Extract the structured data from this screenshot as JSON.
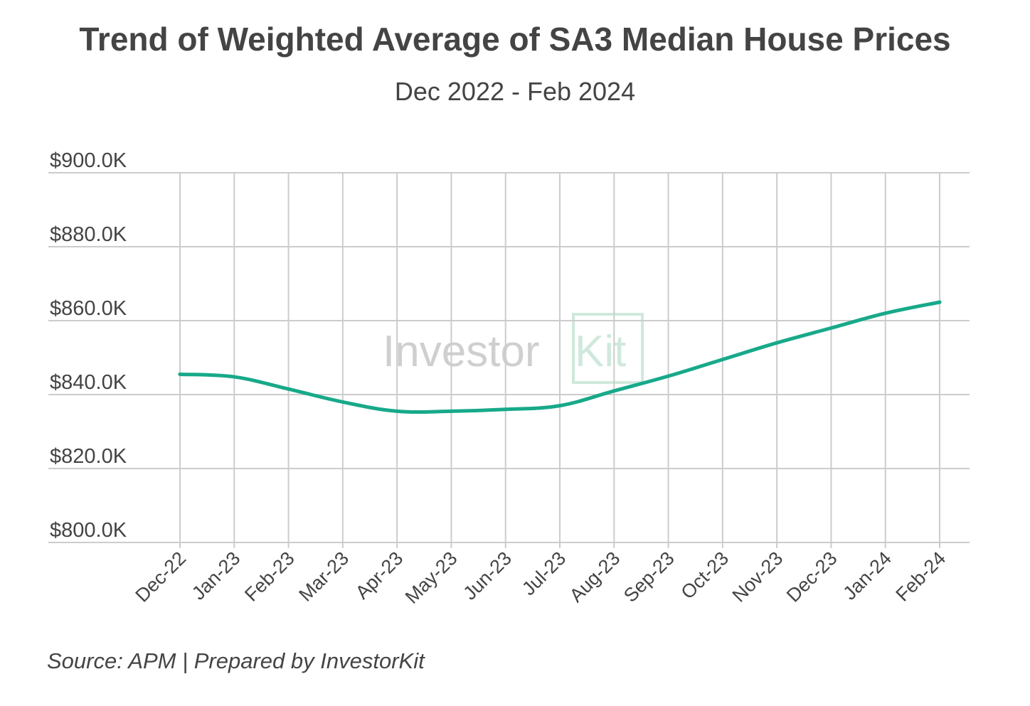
{
  "title": "Trend of Weighted Average of SA3 Median House Prices",
  "subtitle": "Dec 2022 - Feb 2024",
  "source": "Source: APM | Prepared by InvestorKit",
  "watermark": {
    "brand_left": "Investor",
    "brand_right": "Kit"
  },
  "colors": {
    "line": "#17a98a",
    "grid": "#cccccc",
    "text": "#444444",
    "watermark": "#cfcfcf",
    "watermark_accent": "#cfe9dc"
  },
  "chart_data": {
    "type": "line",
    "title": "Trend of Weighted Average of SA3 Median House Prices",
    "subtitle": "Dec 2022 - Feb 2024",
    "xlabel": "",
    "ylabel": "",
    "ylim": [
      800000,
      900000
    ],
    "yticks": [
      800000,
      820000,
      840000,
      860000,
      880000,
      900000
    ],
    "ytick_labels": [
      "$800.0K",
      "$820.0K",
      "$840.0K",
      "$860.0K",
      "$880.0K",
      "$900.0K"
    ],
    "grid": true,
    "legend": "none",
    "categories": [
      "Dec-22",
      "Jan-23",
      "Feb-23",
      "Mar-23",
      "Apr-23",
      "May-23",
      "Jun-23",
      "Jul-23",
      "Aug-23",
      "Sep-23",
      "Oct-23",
      "Nov-23",
      "Dec-23",
      "Jan-24",
      "Feb-24"
    ],
    "series": [
      {
        "name": "Weighted Average of SA3 Median House Prices",
        "values": [
          845500,
          844800,
          841500,
          838000,
          835500,
          835500,
          836000,
          837000,
          841000,
          845000,
          849500,
          854000,
          858000,
          862000,
          865000
        ]
      }
    ]
  }
}
